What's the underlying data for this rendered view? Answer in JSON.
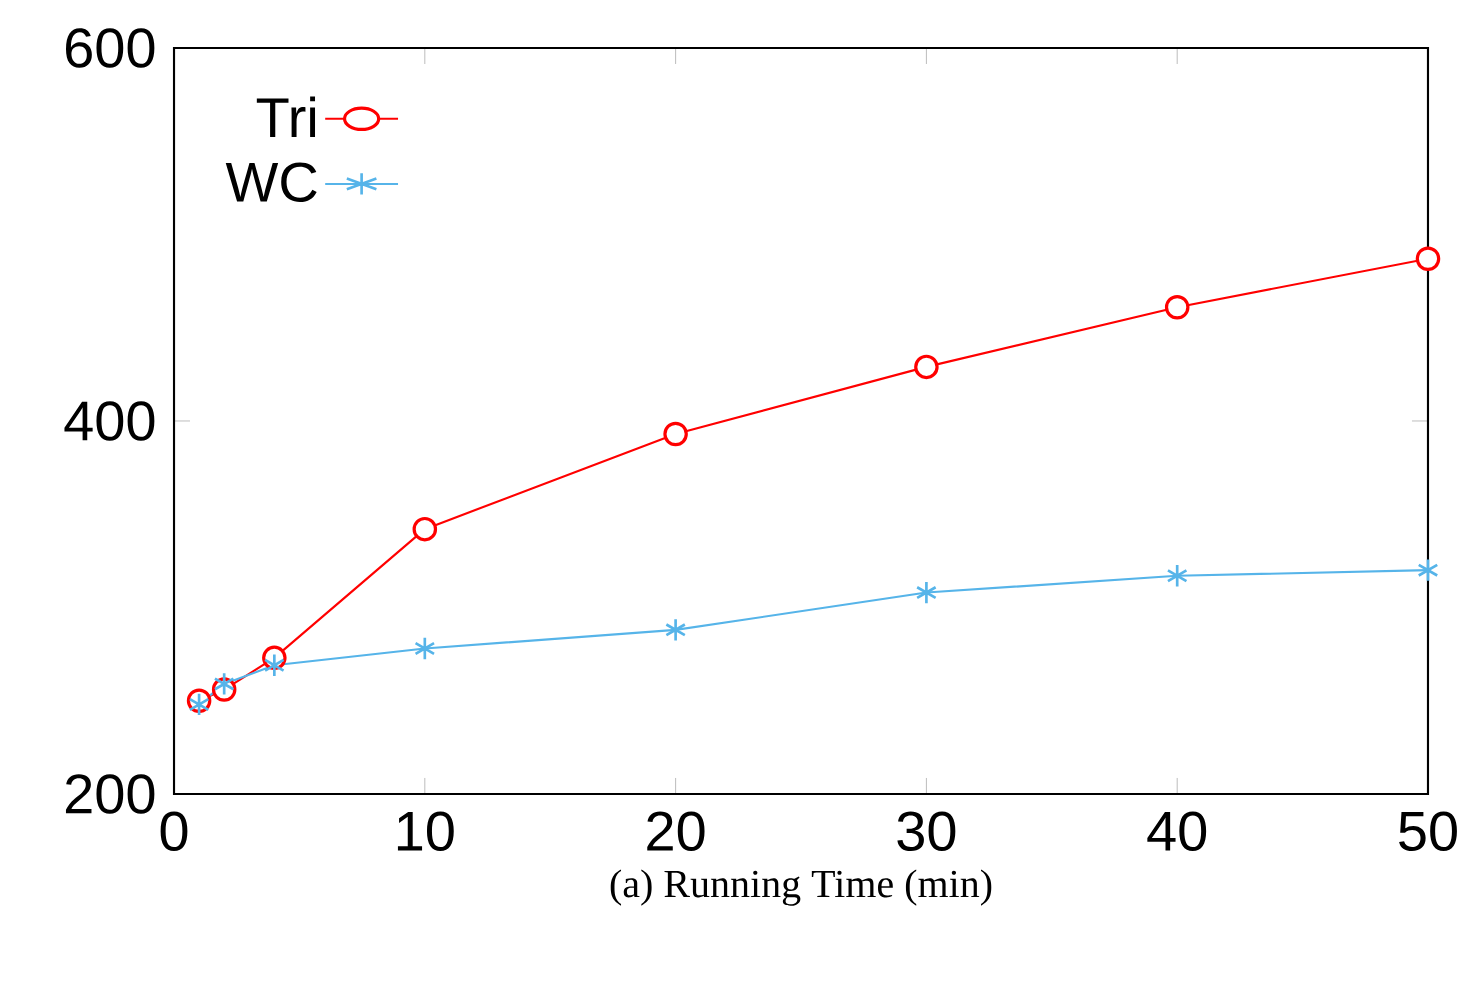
{
  "chart_data": {
    "type": "line",
    "xlabel": "(a) Running Time (min)",
    "x": [
      1,
      2,
      4,
      10,
      20,
      30,
      40,
      50
    ],
    "series": [
      {
        "name": "Tri",
        "color": "#ff0000",
        "marker": "circle",
        "values": [
          250,
          256,
          273,
          342,
          393,
          429,
          461,
          487
        ]
      },
      {
        "name": "WC",
        "color": "#56b4e9",
        "marker": "cross",
        "values": [
          248,
          259,
          269,
          278,
          288,
          308,
          317,
          320
        ]
      }
    ],
    "xlim": [
      0,
      50
    ],
    "xticks": [
      0,
      10,
      20,
      30,
      40,
      50
    ],
    "ylim": [
      200,
      600
    ],
    "yticks": [
      200,
      400,
      600
    ],
    "grid": false,
    "legend": "top left"
  }
}
